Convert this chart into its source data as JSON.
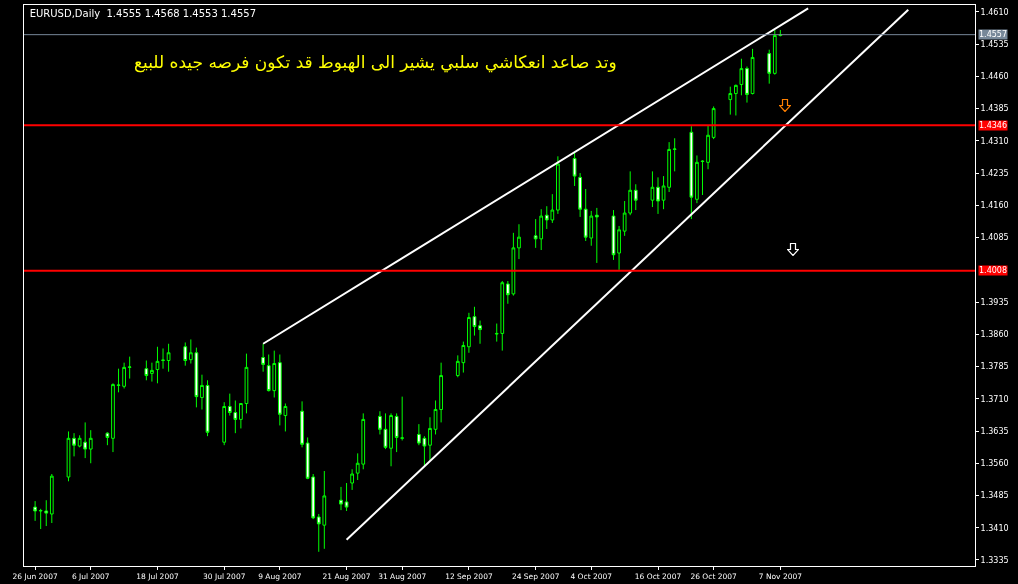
{
  "chart_data": {
    "type": "candlestick",
    "title": "EURUSD,Daily  1.4555 1.4568 1.4553 1.4557",
    "color": "#00ff00",
    "annotations": [
      "وتد صاعد انعكاشي سلبي يشير الى الهبوط قد تكون فرصه جيده للبيع"
    ],
    "x": [
      "2007-06-26",
      "2007-06-27",
      "2007-06-28",
      "2007-06-29",
      "2007-07-02",
      "2007-07-03",
      "2007-07-04",
      "2007-07-05",
      "2007-07-06",
      "2007-07-09",
      "2007-07-10",
      "2007-07-11",
      "2007-07-12",
      "2007-07-13",
      "2007-07-16",
      "2007-07-17",
      "2007-07-18",
      "2007-07-19",
      "2007-07-20",
      "2007-07-23",
      "2007-07-24",
      "2007-07-25",
      "2007-07-26",
      "2007-07-27",
      "2007-07-30",
      "2007-07-31",
      "2007-08-01",
      "2007-08-02",
      "2007-08-03",
      "2007-08-06",
      "2007-08-07",
      "2007-08-08",
      "2007-08-09",
      "2007-08-10",
      "2007-08-13",
      "2007-08-14",
      "2007-08-15",
      "2007-08-16",
      "2007-08-17",
      "2007-08-20",
      "2007-08-21",
      "2007-08-22",
      "2007-08-23",
      "2007-08-24",
      "2007-08-27",
      "2007-08-28",
      "2007-08-29",
      "2007-08-30",
      "2007-08-31",
      "2007-09-03",
      "2007-09-04",
      "2007-09-05",
      "2007-09-06",
      "2007-09-07",
      "2007-09-10",
      "2007-09-11",
      "2007-09-12",
      "2007-09-13",
      "2007-09-14",
      "2007-09-17",
      "2007-09-18",
      "2007-09-19",
      "2007-09-20",
      "2007-09-21",
      "2007-09-24",
      "2007-09-25",
      "2007-09-26",
      "2007-09-27",
      "2007-09-28",
      "2007-10-01",
      "2007-10-02",
      "2007-10-03",
      "2007-10-04",
      "2007-10-05",
      "2007-10-08",
      "2007-10-09",
      "2007-10-10",
      "2007-10-11",
      "2007-10-12",
      "2007-10-15",
      "2007-10-16",
      "2007-10-17",
      "2007-10-18",
      "2007-10-19",
      "2007-10-22",
      "2007-10-23",
      "2007-10-24",
      "2007-10-25",
      "2007-10-26",
      "2007-10-29",
      "2007-10-30",
      "2007-10-31",
      "2007-11-01",
      "2007-11-02",
      "2007-11-05",
      "2007-11-06",
      "2007-11-07"
    ],
    "ohlc": [
      [
        1.3458,
        1.3472,
        1.3426,
        1.3449
      ],
      [
        1.3449,
        1.3454,
        1.3407,
        1.345
      ],
      [
        1.3449,
        1.3474,
        1.3414,
        1.3444
      ],
      [
        1.3442,
        1.3535,
        1.3421,
        1.353
      ],
      [
        1.3528,
        1.3634,
        1.3518,
        1.3618
      ],
      [
        1.3618,
        1.363,
        1.3576,
        1.3602
      ],
      [
        1.36,
        1.3625,
        1.3597,
        1.3618
      ],
      [
        1.3609,
        1.3655,
        1.3572,
        1.3593
      ],
      [
        1.3593,
        1.3637,
        1.356,
        1.3618
      ],
      [
        1.363,
        1.3632,
        1.3602,
        1.362
      ],
      [
        1.3618,
        1.3746,
        1.3586,
        1.3743
      ],
      [
        1.3741,
        1.378,
        1.3725,
        1.3742
      ],
      [
        1.3739,
        1.3794,
        1.3734,
        1.3783
      ],
      [
        1.3783,
        1.3808,
        1.3757,
        1.3784
      ],
      [
        1.378,
        1.3799,
        1.3753,
        1.3764
      ],
      [
        1.3769,
        1.3794,
        1.375,
        1.3776
      ],
      [
        1.3778,
        1.3831,
        1.3746,
        1.3797
      ],
      [
        1.3799,
        1.3827,
        1.378,
        1.38
      ],
      [
        1.3799,
        1.3838,
        1.3773,
        1.3817
      ],
      [
        1.3831,
        1.3841,
        1.3787,
        1.3799
      ],
      [
        1.3801,
        1.3848,
        1.3792,
        1.3817
      ],
      [
        1.3817,
        1.3829,
        1.369,
        1.3715
      ],
      [
        1.3713,
        1.3766,
        1.3685,
        1.3741
      ],
      [
        1.3741,
        1.3753,
        1.3623,
        1.3632
      ],
      [
        1.3609,
        1.3702,
        1.3602,
        1.3692
      ],
      [
        1.3692,
        1.3722,
        1.3671,
        1.3678
      ],
      [
        1.3678,
        1.3706,
        1.363,
        1.3662
      ],
      [
        1.3662,
        1.37,
        1.3641,
        1.3699
      ],
      [
        1.3699,
        1.3815,
        1.3676,
        1.3783
      ],
      [
        1.3806,
        1.3838,
        1.3773,
        1.379
      ],
      [
        1.3787,
        1.3813,
        1.3727,
        1.3729
      ],
      [
        1.3729,
        1.3822,
        1.3713,
        1.3792
      ],
      [
        1.3794,
        1.3813,
        1.3648,
        1.3674
      ],
      [
        1.3671,
        1.3699,
        1.3634,
        1.3692
      ],
      [
        1.3681,
        1.3704,
        1.3597,
        1.3604
      ],
      [
        1.3607,
        1.362,
        1.3523,
        1.3525
      ],
      [
        1.3528,
        1.3535,
        1.343,
        1.3433
      ],
      [
        1.3435,
        1.3442,
        1.3354,
        1.3419
      ],
      [
        1.3416,
        1.3542,
        1.3361,
        1.3484
      ],
      [
        1.3474,
        1.3505,
        1.3451,
        1.3465
      ],
      [
        1.347,
        1.3514,
        1.3449,
        1.3458
      ],
      [
        1.3514,
        1.3546,
        1.3498,
        1.3535
      ],
      [
        1.3537,
        1.3583,
        1.3521,
        1.356
      ],
      [
        1.3558,
        1.3676,
        1.3546,
        1.3662
      ],
      [
        1.3669,
        1.3681,
        1.3627,
        1.3639
      ],
      [
        1.3639,
        1.3676,
        1.3593,
        1.3597
      ],
      [
        1.3595,
        1.3676,
        1.3553,
        1.3671
      ],
      [
        1.3669,
        1.3676,
        1.3586,
        1.362
      ],
      [
        1.3618,
        1.3715,
        1.3613,
        1.3619
      ],
      [
        1.3627,
        1.3651,
        1.3602,
        1.3607
      ],
      [
        1.3618,
        1.3623,
        1.3553,
        1.36
      ],
      [
        1.3602,
        1.3667,
        1.3567,
        1.3641
      ],
      [
        1.3639,
        1.3706,
        1.3627,
        1.3685
      ],
      [
        1.3685,
        1.3794,
        1.3655,
        1.3764
      ],
      [
        1.3764,
        1.3811,
        1.376,
        1.3797
      ],
      [
        1.3794,
        1.3843,
        1.3771,
        1.3834
      ],
      [
        1.3831,
        1.391,
        1.3817,
        1.3899
      ],
      [
        1.3901,
        1.3924,
        1.3857,
        1.3878
      ],
      [
        1.388,
        1.3892,
        1.3838,
        1.3871
      ],
      [
        1.3862,
        1.3885,
        1.3843,
        1.3861
      ],
      [
        1.3862,
        1.3984,
        1.3822,
        1.398
      ],
      [
        1.3977,
        1.3984,
        1.3931,
        1.3952
      ],
      [
        1.3954,
        1.4096,
        1.395,
        1.4061
      ],
      [
        1.4061,
        1.4116,
        1.4035,
        1.4086
      ],
      [
        1.4089,
        1.4128,
        1.4061,
        1.4082
      ],
      [
        1.4082,
        1.4151,
        1.4056,
        1.4135
      ],
      [
        1.4137,
        1.4158,
        1.4105,
        1.4126
      ],
      [
        1.4126,
        1.4186,
        1.4119,
        1.4149
      ],
      [
        1.4149,
        1.4274,
        1.414,
        1.4256
      ],
      [
        1.4269,
        1.4283,
        1.4205,
        1.4228
      ],
      [
        1.4225,
        1.4235,
        1.4133,
        1.4151
      ],
      [
        1.4151,
        1.4198,
        1.4077,
        1.4086
      ],
      [
        1.4084,
        1.4147,
        1.4066,
        1.4135
      ],
      [
        1.4137,
        1.4154,
        1.4026,
        1.4133
      ],
      [
        1.4135,
        1.4149,
        1.4033,
        1.4045
      ],
      [
        1.4049,
        1.4112,
        1.401,
        1.4103
      ],
      [
        1.41,
        1.417,
        1.4089,
        1.4142
      ],
      [
        1.4142,
        1.4239,
        1.4137,
        1.4195
      ],
      [
        1.4195,
        1.4209,
        1.4149,
        1.4172
      ],
      [
        1.4172,
        1.4239,
        1.4156,
        1.4202
      ],
      [
        1.4202,
        1.4225,
        1.414,
        1.417
      ],
      [
        1.4172,
        1.4228,
        1.4151,
        1.4205
      ],
      [
        1.4202,
        1.4307,
        1.4191,
        1.429
      ],
      [
        1.429,
        1.4316,
        1.4239,
        1.4291
      ],
      [
        1.433,
        1.4344,
        1.4128,
        1.4179
      ],
      [
        1.4174,
        1.4276,
        1.4165,
        1.426
      ],
      [
        1.4263,
        1.4265,
        1.4184,
        1.4262
      ],
      [
        1.426,
        1.4346,
        1.4244,
        1.4323
      ],
      [
        1.4318,
        1.439,
        1.4314,
        1.4385
      ],
      [
        1.4406,
        1.4436,
        1.4371,
        1.442
      ],
      [
        1.442,
        1.4441,
        1.4369,
        1.4439
      ],
      [
        1.4441,
        1.4501,
        1.4416,
        1.4478
      ],
      [
        1.4478,
        1.4483,
        1.4399,
        1.4418
      ],
      [
        1.442,
        1.4524,
        1.4418,
        1.4504
      ],
      [
        1.4513,
        1.4522,
        1.4443,
        1.4467
      ],
      [
        1.4467,
        1.4568,
        1.4464,
        1.4555
      ],
      [
        1.4555,
        1.4568,
        1.4553,
        1.4557
      ]
    ],
    "series": [
      {
        "type": "line",
        "color": "#ffffff",
        "x": [
          "2007-08-06",
          "2007-11-12"
        ],
        "values": [
          1.3838,
          1.4618
        ]
      },
      {
        "type": "line",
        "color": "#ffffff",
        "x": [
          "2007-08-21",
          "2007-11-30"
        ],
        "values": [
          1.3382,
          1.4615
        ]
      }
    ],
    "xlim": [
      "2007-06-24",
      "2007-12-12"
    ],
    "xticks": [
      {
        "value": "2007-06-26",
        "label": "26 Jun 2007"
      },
      {
        "value": "2007-07-06",
        "label": "6 Jul 2007"
      },
      {
        "value": "2007-07-18",
        "label": "18 Jul 2007"
      },
      {
        "value": "2007-07-30",
        "label": "30 Jul 2007"
      },
      {
        "value": "2007-08-09",
        "label": "9 Aug 2007"
      },
      {
        "value": "2007-08-21",
        "label": "21 Aug 2007"
      },
      {
        "value": "2007-08-31",
        "label": "31 Aug 2007"
      },
      {
        "value": "2007-09-12",
        "label": "12 Sep 2007"
      },
      {
        "value": "2007-09-24",
        "label": "24 Sep 2007"
      },
      {
        "value": "2007-10-04",
        "label": "4 Oct 2007"
      },
      {
        "value": "2007-10-16",
        "label": "16 Oct 2007"
      },
      {
        "value": "2007-10-26",
        "label": "26 Oct 2007"
      },
      {
        "value": "2007-11-07",
        "label": "7 Nov 2007"
      }
    ],
    "ylim": [
      1.3321,
      1.4626
    ],
    "yticks": [
      {
        "value": 1.461,
        "label": "1.4610"
      },
      1.4535,
      {
        "value": 1.446,
        "label": "1.4460"
      },
      {
        "value": 1.4385,
        "label": "1.4385"
      },
      {
        "value": 1.431,
        "label": "1.4310"
      },
      1.4235,
      {
        "value": 1.416,
        "label": "1.4160"
      },
      1.4085,
      1.3935,
      {
        "value": 1.386,
        "label": "1.3860"
      },
      1.3785,
      {
        "value": 1.371,
        "label": "1.3710"
      },
      1.3635,
      {
        "value": 1.356,
        "label": "1.3560"
      },
      1.3485,
      {
        "value": 1.341,
        "label": "1.3410"
      },
      1.3335
    ],
    "ref_lines": [
      {
        "axis": "y",
        "value": 1.4346,
        "label": "1.4346",
        "color": "#ff0000"
      },
      {
        "axis": "y",
        "value": 1.4008,
        "label": "1.4008",
        "color": "#ff0000"
      },
      {
        "axis": "y",
        "value": 1.4557,
        "label": "1.4557",
        "color": "#778899"
      }
    ],
    "grid": false
  }
}
